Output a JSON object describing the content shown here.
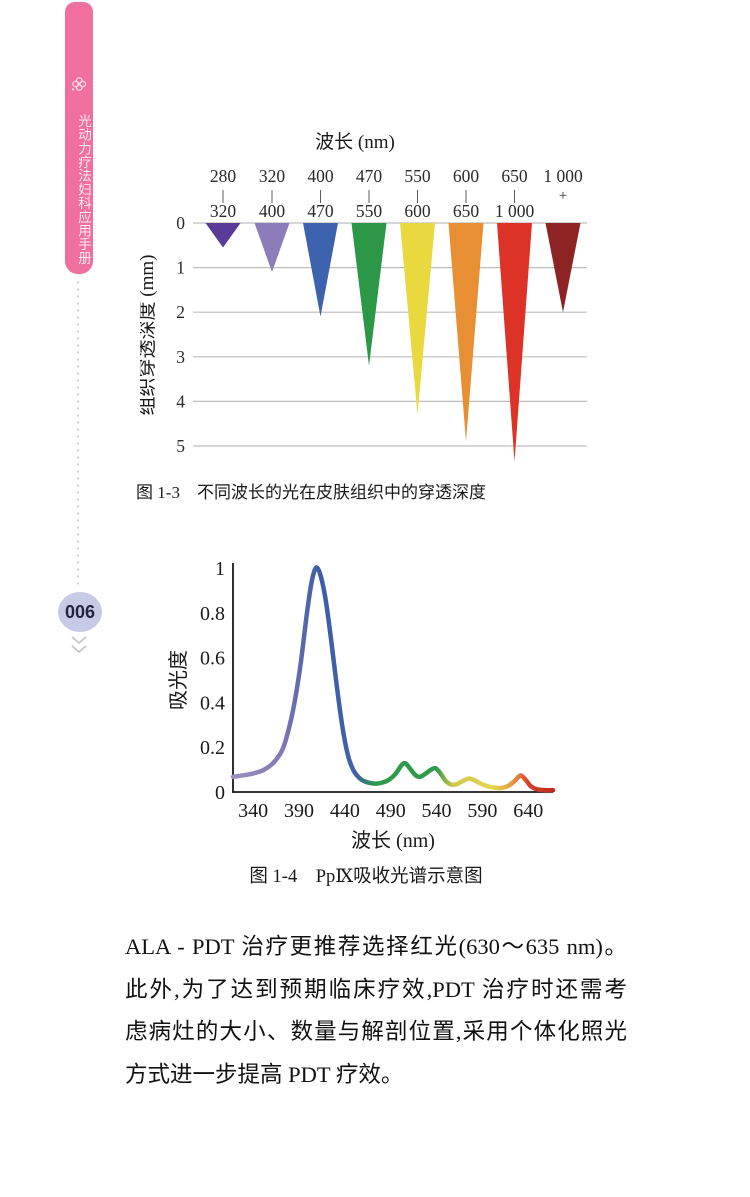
{
  "sidebar": {
    "book_title": "光动力疗法妇科应用手册",
    "page_number": "006",
    "bar_color": "#ef6f9d",
    "oval_color": "#c7c9e6"
  },
  "figure1": {
    "caption": "图 1-3　不同波长的光在皮肤组织中的穿透深度"
  },
  "figure2": {
    "caption": "图 1-4　PpⅨ吸收光谱示意图"
  },
  "paragraph": {
    "lines": [
      "ALA - PDT 治疗更推荐选择红光(630～635 nm)。",
      "此外,为了达到预期临床疗效,PDT 治疗时还需考",
      "虑病灶的大小、数量与解剖位置,采用个体化照光",
      "方式进一步提高 PDT 疗效。"
    ]
  },
  "chart_data": [
    {
      "type": "bar",
      "title": "波长 (nm)",
      "ylabel": "组织穿透深度 (mm)",
      "categories": [
        "280–320",
        "320–400",
        "400–470",
        "470–550",
        "550–600",
        "600–650",
        "650–1000",
        "1000+"
      ],
      "category_labels": [
        {
          "top": "280",
          "sep": "|",
          "bottom": "320"
        },
        {
          "top": "320",
          "sep": "|",
          "bottom": "400"
        },
        {
          "top": "400",
          "sep": "|",
          "bottom": "470"
        },
        {
          "top": "470",
          "sep": "|",
          "bottom": "550"
        },
        {
          "top": "550",
          "sep": "|",
          "bottom": "600"
        },
        {
          "top": "600",
          "sep": "|",
          "bottom": "650"
        },
        {
          "top": "650",
          "sep": "|",
          "bottom": "1 000"
        },
        {
          "top": "1 000",
          "sep": "+",
          "bottom": ""
        }
      ],
      "values": [
        0.55,
        1.1,
        2.1,
        3.2,
        4.3,
        4.9,
        5.35,
        2.0
      ],
      "colors": [
        "#5a3b97",
        "#8d7cba",
        "#3d63ae",
        "#2b9747",
        "#ead83f",
        "#e88e33",
        "#dd3226",
        "#8e2323"
      ],
      "ylim": [
        0,
        5
      ],
      "yticks": [
        0,
        1,
        2,
        3,
        4,
        5
      ],
      "grid": true
    },
    {
      "type": "line",
      "xlabel": "波长 (nm)",
      "ylabel": "吸光度",
      "xlim": [
        318,
        667
      ],
      "ylim": [
        0,
        1
      ],
      "xticks": [
        340,
        390,
        440,
        490,
        540,
        590,
        640
      ],
      "yticks": [
        0,
        0.2,
        0.4,
        0.6,
        0.8,
        1
      ],
      "x": [
        318,
        330,
        342,
        352,
        362,
        372,
        380,
        386,
        392,
        398,
        403,
        407,
        410,
        414,
        419,
        425,
        431,
        437,
        443,
        449,
        456,
        463,
        471,
        479,
        487,
        495,
        502,
        506,
        511,
        517,
        522,
        528,
        534,
        539,
        544,
        550,
        556,
        562,
        569,
        575,
        581,
        588,
        595,
        602,
        610,
        617,
        624,
        630,
        633,
        638,
        643,
        649,
        656,
        662,
        667
      ],
      "y": [
        0.068,
        0.075,
        0.085,
        0.1,
        0.13,
        0.19,
        0.3,
        0.42,
        0.58,
        0.78,
        0.92,
        0.99,
        1.0,
        0.96,
        0.86,
        0.68,
        0.48,
        0.3,
        0.17,
        0.1,
        0.062,
        0.045,
        0.038,
        0.04,
        0.052,
        0.08,
        0.12,
        0.128,
        0.105,
        0.075,
        0.068,
        0.082,
        0.1,
        0.106,
        0.085,
        0.05,
        0.033,
        0.035,
        0.05,
        0.06,
        0.053,
        0.038,
        0.027,
        0.02,
        0.018,
        0.025,
        0.045,
        0.07,
        0.072,
        0.05,
        0.025,
        0.013,
        0.009,
        0.008,
        0.008
      ],
      "gradient_stops": [
        {
          "nm": 318,
          "color": "#9d8fc0"
        },
        {
          "nm": 370,
          "color": "#8379b4"
        },
        {
          "nm": 395,
          "color": "#5668ab"
        },
        {
          "nm": 412,
          "color": "#3d5ea6"
        },
        {
          "nm": 452,
          "color": "#3f62a8"
        },
        {
          "nm": 472,
          "color": "#2f9a4a"
        },
        {
          "nm": 540,
          "color": "#2f9a4a"
        },
        {
          "nm": 558,
          "color": "#d3c94a"
        },
        {
          "nm": 600,
          "color": "#e5d54f"
        },
        {
          "nm": 614,
          "color": "#e6b845"
        },
        {
          "nm": 628,
          "color": "#e2823b"
        },
        {
          "nm": 640,
          "color": "#d4402a"
        },
        {
          "nm": 667,
          "color": "#c12a1f"
        }
      ]
    }
  ]
}
